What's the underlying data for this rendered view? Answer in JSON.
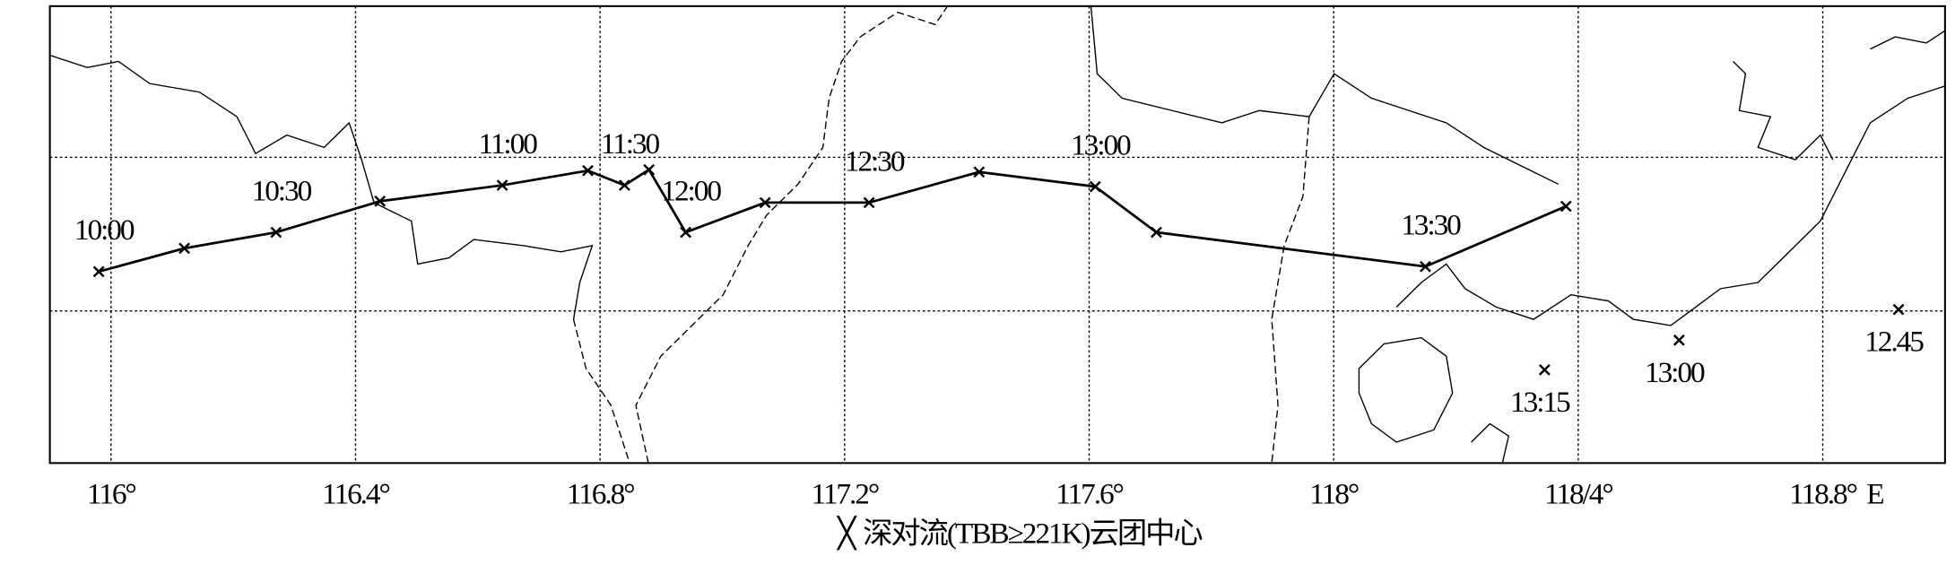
{
  "chart_data": {
    "type": "line",
    "xlim": [
      115.9,
      119.0
    ],
    "ylim": [
      0,
      100
    ],
    "xticks": [
      {
        "value": 116,
        "label": "116°"
      },
      {
        "value": 116.4,
        "label": "116.4°"
      },
      {
        "value": 116.8,
        "label": "116.8°"
      },
      {
        "value": 117.2,
        "label": "117.2°"
      },
      {
        "value": 117.6,
        "label": "117.6°"
      },
      {
        "value": 118,
        "label": "118°"
      },
      {
        "value": 118.4,
        "label": "118/4°"
      },
      {
        "value": 118.8,
        "label": "118.8°"
      }
    ],
    "yticks": [
      33.3,
      66.9
    ],
    "grid": true,
    "x_axis_label": "E",
    "legend_label": "深对流(TBB≥221K)云团中心",
    "series": [
      {
        "type": "line",
        "color": "#000000",
        "x": [
          115.98,
          116.12,
          116.27,
          116.44,
          116.64,
          116.78,
          116.84,
          116.88,
          116.94,
          117.07,
          117.24,
          117.42,
          117.61,
          117.71,
          118.15,
          118.38
        ],
        "y": [
          41.9,
          47.0,
          50.5,
          57.3,
          60.8,
          64.0,
          60.8,
          64.2,
          50.5,
          57.0,
          57.0,
          63.7,
          60.5,
          50.5,
          43.0,
          56.2
        ],
        "labels": [
          "10:00",
          null,
          "10:30",
          null,
          "11:00",
          null,
          "11:30",
          null,
          "12:00",
          null,
          "12:30",
          null,
          "13:00",
          null,
          "13:30",
          null
        ]
      },
      {
        "type": "scatter",
        "color": "#000000",
        "x": [
          118.345,
          118.565,
          118.924
        ],
        "y": [
          20.4,
          26.9,
          33.6
        ],
        "labels": [
          "13:15",
          "13:00",
          "12.45"
        ]
      }
    ]
  }
}
